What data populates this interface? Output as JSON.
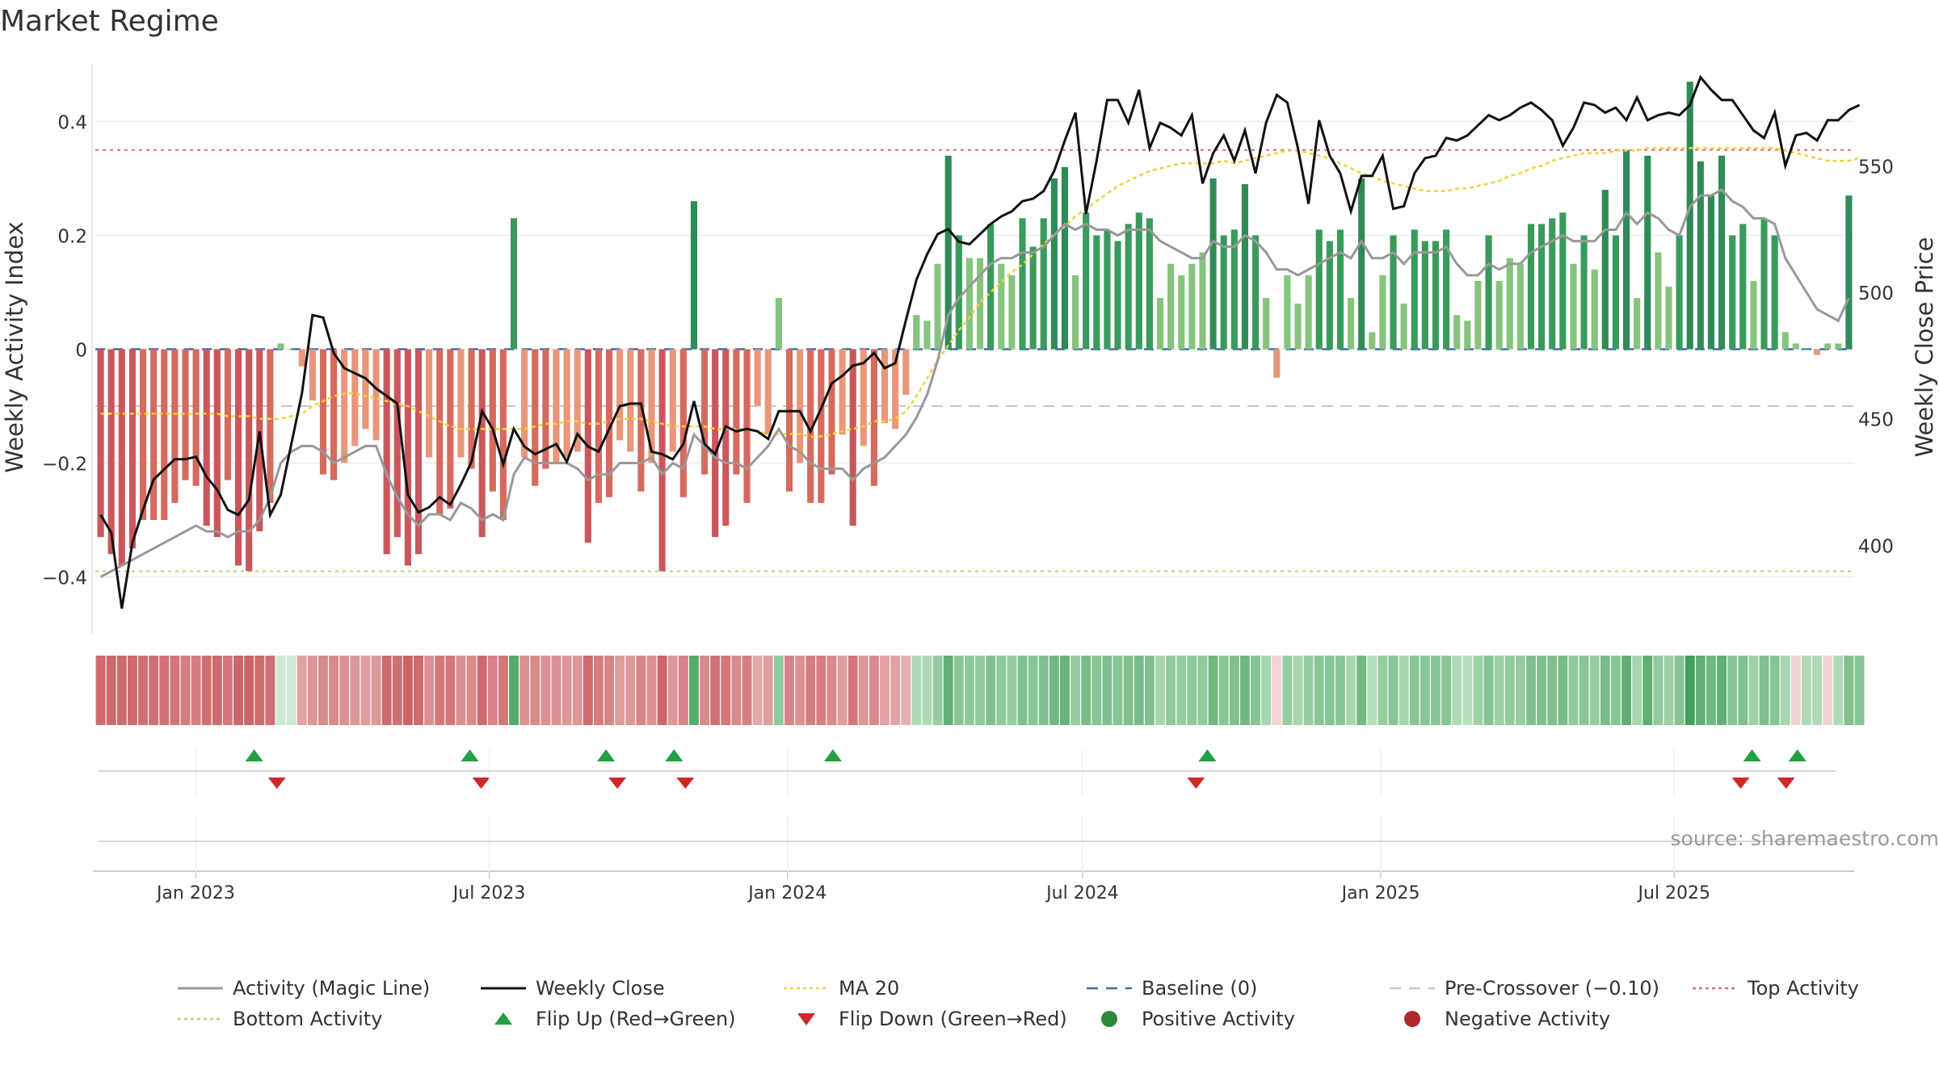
{
  "chart_data": {
    "type": "bar",
    "title": "Market Regime",
    "ylabel": "Weekly Activity Index",
    "y2label": "Weekly Close Price",
    "ylim": [
      -0.5,
      0.5
    ],
    "y2lim": [
      365,
      590
    ],
    "yticks": [
      {
        "v": 0.4,
        "t": "0.4"
      },
      {
        "v": 0.2,
        "t": "0.2"
      },
      {
        "v": 0,
        "t": "0"
      },
      {
        "v": -0.2,
        "t": "−0.2"
      },
      {
        "v": -0.4,
        "t": "−0.4"
      }
    ],
    "y2ticks": [
      {
        "v": 550,
        "t": "550"
      },
      {
        "v": 500,
        "t": "500"
      },
      {
        "v": 450,
        "t": "450"
      },
      {
        "v": 400,
        "t": "400"
      }
    ],
    "xticks": [
      {
        "date": "2023-01-01",
        "t": "Jan 2023"
      },
      {
        "date": "2023-07-01",
        "t": "Jul 2023"
      },
      {
        "date": "2024-01-01",
        "t": "Jan 2024"
      },
      {
        "date": "2024-07-01",
        "t": "Jul 2024"
      },
      {
        "date": "2025-01-01",
        "t": "Jan 2025"
      },
      {
        "date": "2025-07-01",
        "t": "Jul 2025"
      }
    ],
    "x_start": "2022-10-31",
    "x_end": "2025-10-20",
    "top_activity": 0.35,
    "bottom_activity": -0.39,
    "pre_crossover": -0.1,
    "activity": [
      -0.33,
      -0.36,
      -0.38,
      -0.35,
      -0.3,
      -0.3,
      -0.3,
      -0.27,
      -0.23,
      -0.24,
      -0.31,
      -0.33,
      -0.23,
      -0.38,
      -0.39,
      -0.32,
      -0.27,
      0.01,
      0.0,
      -0.03,
      -0.09,
      -0.22,
      -0.23,
      -0.2,
      -0.17,
      -0.14,
      -0.16,
      -0.36,
      -0.33,
      -0.38,
      -0.36,
      -0.19,
      -0.29,
      -0.28,
      -0.19,
      -0.21,
      -0.33,
      -0.25,
      -0.3,
      0.23,
      -0.19,
      -0.24,
      -0.21,
      -0.2,
      -0.19,
      -0.18,
      -0.34,
      -0.27,
      -0.26,
      -0.16,
      -0.18,
      -0.25,
      -0.2,
      -0.39,
      -0.18,
      -0.26,
      0.26,
      -0.22,
      -0.33,
      -0.31,
      -0.22,
      -0.27,
      -0.1,
      -0.15,
      0.09,
      -0.25,
      -0.2,
      -0.27,
      -0.27,
      -0.22,
      -0.15,
      -0.31,
      -0.17,
      -0.24,
      -0.13,
      -0.14,
      -0.08,
      0.06,
      0.05,
      0.15,
      0.34,
      0.2,
      0.16,
      0.16,
      0.22,
      0.15,
      0.13,
      0.23,
      0.18,
      0.23,
      0.3,
      0.32,
      0.13,
      0.24,
      0.2,
      0.21,
      0.19,
      0.22,
      0.24,
      0.23,
      0.09,
      0.15,
      0.13,
      0.15,
      0.17,
      0.3,
      0.2,
      0.21,
      0.29,
      0.2,
      0.09,
      -0.05,
      0.13,
      0.08,
      0.13,
      0.21,
      0.19,
      0.21,
      0.09,
      0.3,
      0.03,
      0.13,
      0.2,
      0.08,
      0.21,
      0.19,
      0.19,
      0.21,
      0.06,
      0.05,
      0.12,
      0.2,
      0.12,
      0.16,
      0.15,
      0.22,
      0.22,
      0.23,
      0.24,
      0.15,
      0.2,
      0.14,
      0.28,
      0.2,
      0.35,
      0.09,
      0.34,
      0.17,
      0.11,
      0.2,
      0.47,
      0.33,
      0.27,
      0.34,
      0.2,
      0.22,
      0.12,
      0.23,
      0.2,
      0.03,
      0.01,
      0.0,
      -0.01,
      0.01,
      0.01,
      0.27
    ],
    "magic_line": [
      -0.4,
      -0.39,
      -0.38,
      -0.37,
      -0.36,
      -0.35,
      -0.34,
      -0.33,
      -0.32,
      -0.31,
      -0.32,
      -0.32,
      -0.33,
      -0.32,
      -0.32,
      -0.3,
      -0.26,
      -0.2,
      -0.18,
      -0.17,
      -0.17,
      -0.18,
      -0.2,
      -0.19,
      -0.18,
      -0.17,
      -0.17,
      -0.22,
      -0.26,
      -0.29,
      -0.31,
      -0.29,
      -0.29,
      -0.3,
      -0.27,
      -0.28,
      -0.3,
      -0.29,
      -0.3,
      -0.22,
      -0.19,
      -0.2,
      -0.2,
      -0.2,
      -0.2,
      -0.21,
      -0.23,
      -0.22,
      -0.22,
      -0.2,
      -0.2,
      -0.2,
      -0.19,
      -0.22,
      -0.2,
      -0.21,
      -0.15,
      -0.17,
      -0.19,
      -0.2,
      -0.2,
      -0.21,
      -0.19,
      -0.17,
      -0.14,
      -0.17,
      -0.18,
      -0.2,
      -0.21,
      -0.21,
      -0.21,
      -0.23,
      -0.21,
      -0.2,
      -0.19,
      -0.17,
      -0.15,
      -0.12,
      -0.08,
      -0.02,
      0.06,
      0.09,
      0.11,
      0.13,
      0.15,
      0.16,
      0.16,
      0.17,
      0.17,
      0.18,
      0.2,
      0.22,
      0.21,
      0.22,
      0.21,
      0.21,
      0.2,
      0.21,
      0.21,
      0.21,
      0.19,
      0.18,
      0.17,
      0.16,
      0.16,
      0.19,
      0.18,
      0.18,
      0.2,
      0.19,
      0.17,
      0.14,
      0.14,
      0.13,
      0.14,
      0.15,
      0.16,
      0.17,
      0.16,
      0.19,
      0.16,
      0.16,
      0.17,
      0.15,
      0.17,
      0.17,
      0.17,
      0.18,
      0.15,
      0.13,
      0.13,
      0.15,
      0.14,
      0.15,
      0.15,
      0.17,
      0.18,
      0.19,
      0.2,
      0.19,
      0.19,
      0.19,
      0.21,
      0.21,
      0.24,
      0.22,
      0.24,
      0.23,
      0.21,
      0.2,
      0.25,
      0.27,
      0.27,
      0.28,
      0.26,
      0.25,
      0.23,
      0.23,
      0.22,
      0.16,
      0.13,
      0.1,
      0.07,
      0.06,
      0.05,
      0.09
    ],
    "weekly_close": [
      412,
      405,
      375,
      401,
      414,
      426,
      430,
      434,
      434,
      435,
      427,
      422,
      414,
      412,
      418,
      445,
      412,
      420,
      440,
      460,
      491,
      490,
      476,
      470,
      468,
      466,
      462,
      459,
      456,
      420,
      413,
      415,
      419,
      416,
      424,
      433,
      453,
      446,
      432,
      446,
      439,
      436,
      438,
      440,
      433,
      444,
      439,
      437,
      446,
      455,
      456,
      456,
      437,
      436,
      434,
      440,
      457,
      440,
      436,
      447,
      445,
      446,
      445,
      442,
      453,
      453,
      453,
      445,
      454,
      464,
      467,
      471,
      472,
      476,
      470,
      472,
      489,
      505,
      515,
      523,
      525,
      520,
      519,
      523,
      527,
      530,
      532,
      536,
      537,
      540,
      548,
      560,
      571,
      531,
      552,
      576,
      576,
      567,
      580,
      557,
      567,
      565,
      562,
      570,
      543,
      555,
      562,
      552,
      564,
      547,
      567,
      578,
      575,
      557,
      535,
      568,
      554,
      547,
      532,
      546,
      546,
      554,
      533,
      534,
      547,
      553,
      554,
      561,
      560,
      562,
      566,
      570,
      568,
      570,
      573,
      575,
      572,
      568,
      558,
      565,
      575,
      574,
      571,
      573,
      568,
      577,
      568,
      570,
      571,
      570,
      574,
      585,
      580,
      576,
      576,
      570,
      564,
      561,
      571,
      550,
      562,
      563,
      560,
      568,
      568,
      572,
      574
    ],
    "ma20": [
      452,
      452,
      452,
      452,
      452,
      452,
      452,
      452,
      452,
      452,
      452,
      452,
      451,
      451,
      451,
      450,
      450,
      450,
      451,
      452,
      455,
      457,
      459,
      460,
      460,
      459,
      458,
      457,
      456,
      455,
      453,
      451,
      449,
      447,
      446,
      446,
      446,
      446,
      446,
      446,
      446,
      447,
      448,
      448,
      449,
      449,
      448,
      448,
      449,
      450,
      450,
      450,
      449,
      448,
      447,
      447,
      447,
      447,
      446,
      446,
      446,
      446,
      445,
      444,
      444,
      444,
      444,
      443,
      443,
      444,
      445,
      446,
      447,
      449,
      449,
      450,
      453,
      459,
      466,
      473,
      479,
      485,
      490,
      496,
      500,
      504,
      508,
      511,
      515,
      519,
      523,
      526,
      530,
      533,
      536,
      539,
      542,
      544,
      546,
      548,
      549,
      550,
      551,
      551,
      551,
      551,
      552,
      551,
      552,
      553,
      554,
      555,
      556,
      556,
      555,
      554,
      553,
      551,
      549,
      547,
      546,
      544,
      543,
      542,
      541,
      540,
      540,
      540,
      541,
      541,
      542,
      543,
      544,
      546,
      547,
      549,
      550,
      552,
      553,
      554,
      555,
      555,
      555,
      556,
      556,
      556,
      557,
      557,
      557,
      557,
      557,
      557,
      557,
      557,
      557,
      557,
      557,
      557,
      557,
      556,
      555,
      554,
      553,
      552,
      552,
      552,
      553
    ],
    "strip_regime": [
      "R",
      "R",
      "R",
      "R",
      "R",
      "R",
      "R",
      "R",
      "R",
      "R",
      "R",
      "R",
      "R",
      "R",
      "R",
      "R",
      "R",
      "g",
      "g",
      "R",
      "R",
      "R",
      "R",
      "R",
      "R",
      "R",
      "R",
      "R",
      "R",
      "R",
      "R",
      "R",
      "R",
      "R",
      "R",
      "R",
      "R",
      "R",
      "R",
      "G",
      "R",
      "R",
      "R",
      "R",
      "R",
      "R",
      "R",
      "R",
      "R",
      "R",
      "R",
      "R",
      "R",
      "R",
      "R",
      "R",
      "G",
      "R",
      "R",
      "R",
      "R",
      "R",
      "R",
      "R",
      "G",
      "R",
      "R",
      "R",
      "R",
      "R",
      "R",
      "R",
      "R",
      "R",
      "R",
      "R",
      "R",
      "G",
      "G",
      "G",
      "G",
      "G",
      "G",
      "G",
      "G",
      "G",
      "G",
      "G",
      "G",
      "G",
      "G",
      "G",
      "G",
      "G",
      "G",
      "G",
      "G",
      "G",
      "G",
      "G",
      "G",
      "G",
      "G",
      "G",
      "G",
      "G",
      "G",
      "G",
      "G",
      "G",
      "G",
      "r",
      "G",
      "G",
      "G",
      "G",
      "G",
      "G",
      "G",
      "G",
      "G",
      "G",
      "G",
      "G",
      "G",
      "G",
      "G",
      "G",
      "G",
      "G",
      "G",
      "G",
      "G",
      "G",
      "G",
      "G",
      "G",
      "G",
      "G",
      "G",
      "G",
      "G",
      "G",
      "G",
      "G",
      "G",
      "G",
      "G",
      "G",
      "G",
      "G",
      "G",
      "G",
      "G",
      "G",
      "G",
      "G",
      "G",
      "G",
      "G",
      "r",
      "G",
      "G",
      "r",
      "G",
      "G",
      "G"
    ],
    "strip_intensity": [
      0.85,
      0.85,
      0.85,
      0.85,
      0.8,
      0.8,
      0.8,
      0.75,
      0.7,
      0.7,
      0.8,
      0.85,
      0.75,
      0.9,
      0.9,
      0.85,
      0.8,
      0.2,
      0.2,
      0.4,
      0.5,
      0.6,
      0.6,
      0.55,
      0.5,
      0.45,
      0.5,
      0.85,
      0.8,
      0.9,
      0.85,
      0.55,
      0.75,
      0.75,
      0.55,
      0.6,
      0.85,
      0.65,
      0.75,
      0.8,
      0.55,
      0.6,
      0.55,
      0.55,
      0.5,
      0.5,
      0.85,
      0.7,
      0.65,
      0.45,
      0.5,
      0.65,
      0.55,
      0.9,
      0.5,
      0.65,
      0.8,
      0.6,
      0.8,
      0.75,
      0.6,
      0.7,
      0.35,
      0.45,
      0.45,
      0.65,
      0.55,
      0.7,
      0.7,
      0.6,
      0.45,
      0.75,
      0.5,
      0.6,
      0.4,
      0.4,
      0.3,
      0.25,
      0.25,
      0.4,
      0.75,
      0.5,
      0.45,
      0.45,
      0.55,
      0.45,
      0.4,
      0.55,
      0.5,
      0.55,
      0.65,
      0.7,
      0.4,
      0.6,
      0.5,
      0.55,
      0.5,
      0.55,
      0.6,
      0.55,
      0.3,
      0.45,
      0.4,
      0.45,
      0.45,
      0.65,
      0.5,
      0.55,
      0.65,
      0.5,
      0.3,
      0.3,
      0.4,
      0.3,
      0.4,
      0.5,
      0.5,
      0.5,
      0.3,
      0.65,
      0.2,
      0.4,
      0.5,
      0.3,
      0.5,
      0.5,
      0.5,
      0.5,
      0.25,
      0.2,
      0.35,
      0.5,
      0.35,
      0.45,
      0.4,
      0.55,
      0.55,
      0.55,
      0.6,
      0.45,
      0.5,
      0.4,
      0.6,
      0.5,
      0.75,
      0.3,
      0.75,
      0.45,
      0.35,
      0.5,
      0.95,
      0.75,
      0.65,
      0.75,
      0.5,
      0.55,
      0.35,
      0.55,
      0.5,
      0.3,
      0.25,
      0.25,
      0.25,
      0.25,
      0.25,
      0.55
    ],
    "flip_up_dates": [
      "2023-02-06",
      "2023-06-19",
      "2023-09-11",
      "2023-10-23",
      "2024-01-29",
      "2024-09-16",
      "2025-08-18",
      "2025-09-15"
    ],
    "flip_down_dates": [
      "2023-02-20",
      "2023-06-26",
      "2023-09-18",
      "2023-10-30",
      "2024-09-09",
      "2025-08-11",
      "2025-09-08"
    ],
    "legend": [
      {
        "key": "activity",
        "label": "Activity (Magic Line)",
        "kind": "line",
        "color": "#999999"
      },
      {
        "key": "close",
        "label": "Weekly Close",
        "kind": "line",
        "color": "#111111"
      },
      {
        "key": "ma20",
        "label": "MA 20",
        "kind": "dotted",
        "color": "#f2d23a"
      },
      {
        "key": "baseline",
        "label": "Baseline (0)",
        "kind": "dash",
        "color": "#3b6fa0"
      },
      {
        "key": "precross",
        "label": "Pre-Crossover (−0.10)",
        "kind": "dash",
        "color": "#c8c8c8"
      },
      {
        "key": "top",
        "label": "Top Activity",
        "kind": "dotted",
        "color": "#e0707a"
      },
      {
        "key": "bottom",
        "label": "Bottom Activity",
        "kind": "dotted",
        "color": "#a8d870"
      },
      {
        "key": "flipup",
        "label": "Flip Up (Red→Green)",
        "kind": "tri-up",
        "color": "#22a046"
      },
      {
        "key": "flipdown",
        "label": "Flip Down (Green→Red)",
        "kind": "tri-down",
        "color": "#d02828"
      },
      {
        "key": "pos",
        "label": "Positive Activity",
        "kind": "dot",
        "color": "#2a8a3a"
      },
      {
        "key": "neg",
        "label": "Negative Activity",
        "kind": "dot",
        "color": "#b02828"
      }
    ]
  },
  "source_note": "source: sharemaestro.com"
}
